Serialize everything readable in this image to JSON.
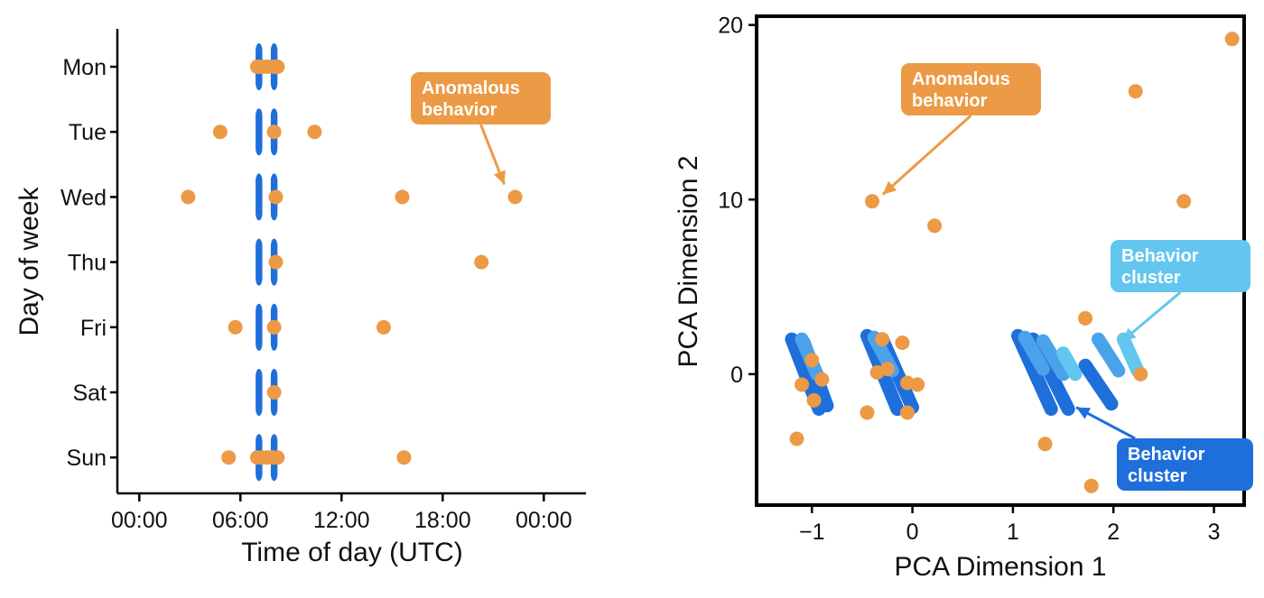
{
  "chart_data": [
    {
      "type": "scatter",
      "xlabel": "Time of day (UTC)",
      "ylabel": "Day of week",
      "x_unit": "hour of day",
      "xlim": [
        -1.3,
        26.5
      ],
      "x_ticks": [
        "00:00",
        "06:00",
        "12:00",
        "18:00",
        "00:00"
      ],
      "y_categories": [
        "Mon",
        "Tue",
        "Wed",
        "Thu",
        "Fri",
        "Sat",
        "Sun"
      ],
      "grid": false,
      "series": [
        {
          "color": "#1f6fdb",
          "points": [
            {
              "day": "Mon",
              "from": 6.9,
              "to": 7.3
            },
            {
              "day": "Mon",
              "from": 7.8,
              "to": 8.2
            },
            {
              "day": "Tue",
              "from": 6.9,
              "to": 7.3
            },
            {
              "day": "Tue",
              "from": 7.8,
              "to": 8.2
            },
            {
              "day": "Wed",
              "from": 6.9,
              "to": 7.3
            },
            {
              "day": "Wed",
              "from": 7.8,
              "to": 8.2
            },
            {
              "day": "Thu",
              "from": 6.9,
              "to": 7.3
            },
            {
              "day": "Thu",
              "from": 7.8,
              "to": 8.2
            },
            {
              "day": "Fri",
              "from": 6.9,
              "to": 7.3
            },
            {
              "day": "Fri",
              "from": 7.8,
              "to": 8.2
            },
            {
              "day": "Sat",
              "from": 6.9,
              "to": 7.3
            },
            {
              "day": "Sat",
              "from": 7.8,
              "to": 8.2
            },
            {
              "day": "Sun",
              "from": 6.9,
              "to": 7.3
            },
            {
              "day": "Sun",
              "from": 7.8,
              "to": 8.2
            }
          ]
        },
        {
          "color": "#ec9a45",
          "points": [
            {
              "day": "Mon",
              "x": 7.0
            },
            {
              "day": "Mon",
              "x": 7.3
            },
            {
              "day": "Mon",
              "x": 7.6
            },
            {
              "day": "Mon",
              "x": 8.0
            },
            {
              "day": "Mon",
              "x": 8.2
            },
            {
              "day": "Mon",
              "x": 7.1
            },
            {
              "day": "Tue",
              "x": 4.8
            },
            {
              "day": "Tue",
              "x": 10.4
            },
            {
              "day": "Tue",
              "x": 8.0
            },
            {
              "day": "Wed",
              "x": 2.9
            },
            {
              "day": "Wed",
              "x": 15.6
            },
            {
              "day": "Wed",
              "x": 22.3
            },
            {
              "day": "Wed",
              "x": 8.1
            },
            {
              "day": "Thu",
              "x": 20.3
            },
            {
              "day": "Thu",
              "x": 8.1
            },
            {
              "day": "Fri",
              "x": 5.7
            },
            {
              "day": "Fri",
              "x": 14.5
            },
            {
              "day": "Fri",
              "x": 8.0
            },
            {
              "day": "Sat",
              "x": 8.0
            },
            {
              "day": "Sun",
              "x": 5.3
            },
            {
              "day": "Sun",
              "x": 15.7
            },
            {
              "day": "Sun",
              "x": 7.0
            },
            {
              "day": "Sun",
              "x": 7.3
            },
            {
              "day": "Sun",
              "x": 7.9
            },
            {
              "day": "Sun",
              "x": 8.2
            },
            {
              "day": "Sun",
              "x": 7.6
            }
          ]
        }
      ],
      "annotations": [
        {
          "text": [
            "Anomalous",
            "behavior"
          ],
          "color": "#ec9a45",
          "target_day": "Wed",
          "target_x": 22.3
        }
      ]
    },
    {
      "type": "scatter",
      "xlabel": "PCA Dimension 1",
      "ylabel": "PCA Dimension 2",
      "xlim": [
        -1.55,
        3.3
      ],
      "ylim": [
        -7.5,
        20.5
      ],
      "x_ticks": [
        -1,
        0,
        1,
        2,
        3
      ],
      "x_tick_labels": [
        "−1",
        "0",
        "1",
        "2",
        "3"
      ],
      "y_ticks": [
        0,
        10,
        20
      ],
      "grid": false,
      "series": [
        {
          "color": "#1f6fdb",
          "streaks": [
            {
              "from": [
                -1.2,
                2.0
              ],
              "to": [
                -0.93,
                -2.0
              ]
            },
            {
              "from": [
                -1.08,
                1.8
              ],
              "to": [
                -0.85,
                -1.8
              ]
            },
            {
              "from": [
                -0.45,
                2.2
              ],
              "to": [
                -0.15,
                -2.0
              ]
            },
            {
              "from": [
                -0.3,
                2.0
              ],
              "to": [
                0.0,
                -1.9
              ]
            },
            {
              "from": [
                1.05,
                2.2
              ],
              "to": [
                1.38,
                -2.0
              ]
            },
            {
              "from": [
                1.2,
                2.0
              ],
              "to": [
                1.55,
                -2.0
              ]
            },
            {
              "from": [
                1.72,
                0.5
              ],
              "to": [
                1.98,
                -1.7
              ]
            }
          ]
        },
        {
          "color": "#4aa3ea",
          "streaks": [
            {
              "from": [
                -1.1,
                2.0
              ],
              "to": [
                -0.95,
                0.0
              ]
            },
            {
              "from": [
                -0.38,
                2.1
              ],
              "to": [
                -0.2,
                0.2
              ]
            },
            {
              "from": [
                1.12,
                2.1
              ],
              "to": [
                1.3,
                0.3
              ]
            },
            {
              "from": [
                1.3,
                1.9
              ],
              "to": [
                1.5,
                0.0
              ]
            },
            {
              "from": [
                1.85,
                2.0
              ],
              "to": [
                2.05,
                0.2
              ]
            }
          ]
        },
        {
          "color": "#62c6ee",
          "streaks": [
            {
              "from": [
                1.5,
                1.2
              ],
              "to": [
                1.62,
                0.0
              ]
            },
            {
              "from": [
                2.1,
                2.0
              ],
              "to": [
                2.24,
                0.2
              ]
            }
          ]
        },
        {
          "color": "#ec9a45",
          "points": [
            {
              "x": 3.18,
              "y": 19.2
            },
            {
              "x": 2.22,
              "y": 16.2
            },
            {
              "x": 2.7,
              "y": 9.9
            },
            {
              "x": -0.4,
              "y": 9.9
            },
            {
              "x": 0.22,
              "y": 8.5
            },
            {
              "x": 1.72,
              "y": 3.2
            },
            {
              "x": -1.15,
              "y": -3.7
            },
            {
              "x": -0.45,
              "y": -2.2
            },
            {
              "x": 1.32,
              "y": -4.0
            },
            {
              "x": 1.78,
              "y": -6.4
            },
            {
              "x": -0.05,
              "y": -2.2
            },
            {
              "x": 2.27,
              "y": 0.0
            },
            {
              "x": -1.0,
              "y": 0.8
            },
            {
              "x": -0.9,
              "y": -0.3
            },
            {
              "x": -0.98,
              "y": -1.5
            },
            {
              "x": -1.1,
              "y": -0.6
            },
            {
              "x": -0.25,
              "y": 0.3
            },
            {
              "x": -0.1,
              "y": 1.8
            },
            {
              "x": -0.05,
              "y": -0.5
            },
            {
              "x": 0.05,
              "y": -0.6
            },
            {
              "x": -0.3,
              "y": 2.0
            },
            {
              "x": -0.35,
              "y": 0.1
            }
          ]
        }
      ],
      "annotations": [
        {
          "text": [
            "Anomalous",
            "behavior"
          ],
          "color": "#ec9a45",
          "target": [
            -0.42,
            10.5
          ]
        },
        {
          "text": [
            "Behavior",
            "cluster"
          ],
          "color": "#62c6ee",
          "target": [
            2.07,
            2.1
          ]
        },
        {
          "text": [
            "Behavior",
            "cluster"
          ],
          "color": "#1f6fdb",
          "target": [
            1.63,
            -1.9
          ]
        }
      ]
    }
  ]
}
